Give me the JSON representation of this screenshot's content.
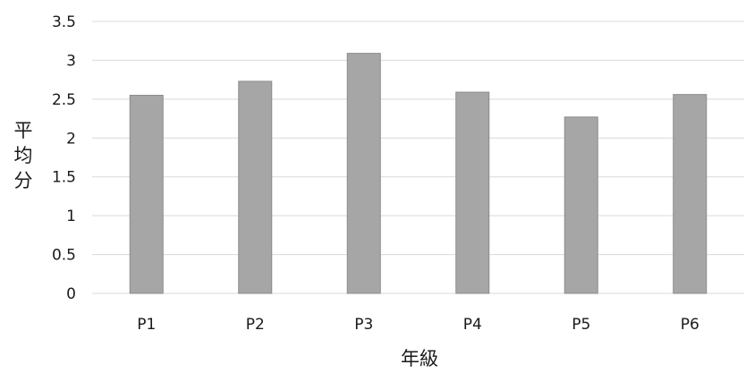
{
  "chart_data": {
    "type": "bar",
    "categories": [
      "P1",
      "P2",
      "P3",
      "P4",
      "P5",
      "P6"
    ],
    "values": [
      2.55,
      2.73,
      3.09,
      2.59,
      2.27,
      2.56
    ],
    "xlabel": "年級",
    "ylabel": "平均分",
    "ylim": [
      0,
      3.5
    ],
    "yticks": [
      "0",
      "0.5",
      "1",
      "1.5",
      "2",
      "2.5",
      "3",
      "3.5"
    ],
    "grid": true,
    "legend": "none",
    "colors": {
      "bar_fill": "#a6a6a6",
      "bar_edge": "#8c8c8c",
      "grid": "#d9d9d9"
    }
  }
}
